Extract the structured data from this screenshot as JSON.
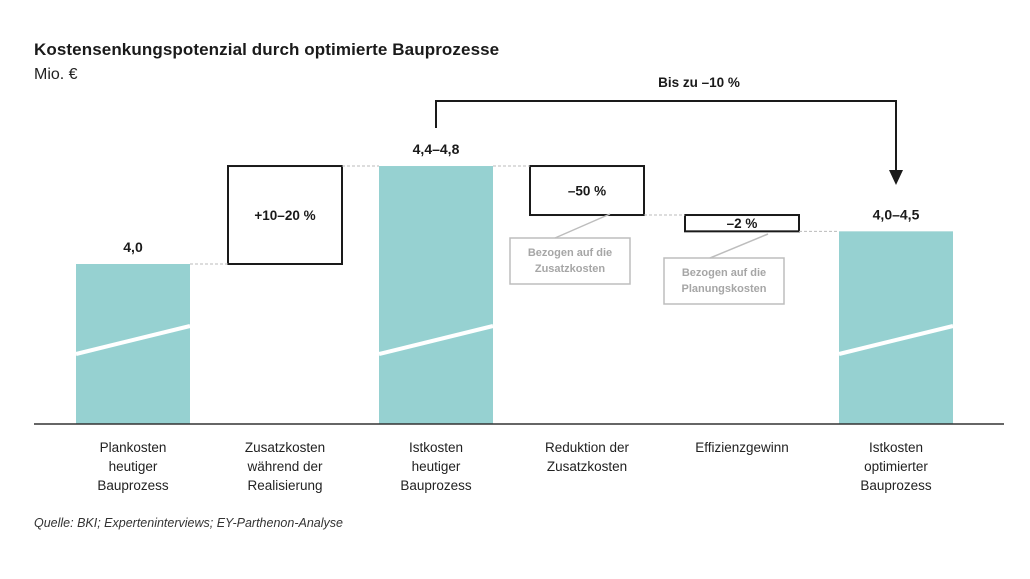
{
  "title": "Kostensenkungspotenzial durch optimierte Bauprozesse",
  "unit": "Mio. €",
  "source": "Quelle: BKI; Experteninterviews; EY-Parthenon-Analyse",
  "colors": {
    "bar": "#96d1d1",
    "box_border": "#1a1a1a",
    "note_border": "#bdbdbd",
    "note_text": "#a6a6a6",
    "connector": "#bbbbbb"
  },
  "chart_data": {
    "type": "bar",
    "subtype": "waterfall",
    "categories": [
      [
        "Plankosten",
        "heutiger",
        "Bauprozess"
      ],
      [
        "Zusatzkosten",
        "während der",
        "Realisierung"
      ],
      [
        "Istkosten",
        "heutiger",
        "Bauprozess"
      ],
      [
        "Reduktion der",
        "Zusatzkosten"
      ],
      [
        "Effizienzgewinn"
      ],
      [
        "Istkosten",
        "optimierter",
        "Bauprozess"
      ]
    ],
    "steps": [
      {
        "kind": "total",
        "value": 4.0,
        "label": "4,0"
      },
      {
        "kind": "increase",
        "from": 4.0,
        "to": 4.6,
        "label": "+10–20 %"
      },
      {
        "kind": "total",
        "value": 4.6,
        "label": "4,4–4,8"
      },
      {
        "kind": "decrease",
        "from": 4.6,
        "to": 4.3,
        "label": "–50 %",
        "note": [
          "Bezogen auf die",
          "Zusatzkosten"
        ]
      },
      {
        "kind": "decrease",
        "from": 4.3,
        "to": 4.2,
        "label": "–2 %",
        "note": [
          "Bezogen auf die",
          "Planungskosten"
        ]
      },
      {
        "kind": "total",
        "value": 4.2,
        "label": "4,0–4,5"
      }
    ],
    "bracket_label": "Bis zu –10 %",
    "axis_break": true
  }
}
